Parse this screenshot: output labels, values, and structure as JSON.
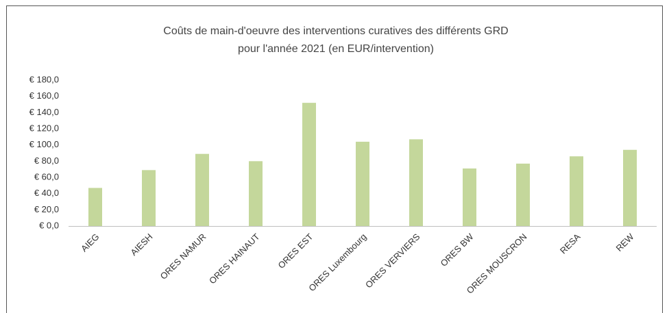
{
  "chart_data": {
    "type": "bar",
    "title": [
      "Coûts de main-d'oeuvre des interventions curatives des différents GRD",
      "pour l'année 2021 (en EUR/intervention)"
    ],
    "categories": [
      "AIEG",
      "AIESH",
      "ORES NAMUR",
      "ORES HAINAUT",
      "ORES EST",
      "ORES Luxembourg",
      "ORES VERVIERS",
      "ORES BW",
      "ORES MOUSCRON",
      "RESA",
      "REW"
    ],
    "values": [
      47,
      69,
      89,
      80,
      152,
      104,
      107,
      71,
      77,
      86,
      94
    ],
    "color": "#c4d79b",
    "ylim": [
      0,
      180
    ],
    "yticks": [
      {
        "value": 0,
        "label": "€ 0,0"
      },
      {
        "value": 20,
        "label": "€ 20,0"
      },
      {
        "value": 40,
        "label": "€ 40,0"
      },
      {
        "value": 60,
        "label": "€ 60,0"
      },
      {
        "value": 80,
        "label": "€ 80,0"
      },
      {
        "value": 100,
        "label": "€ 100,0"
      },
      {
        "value": 120,
        "label": "€ 120,0"
      },
      {
        "value": 140,
        "label": "€ 140,0"
      },
      {
        "value": 160,
        "label": "€ 160,0"
      },
      {
        "value": 180,
        "label": "€ 180,0"
      }
    ],
    "grid": false
  }
}
